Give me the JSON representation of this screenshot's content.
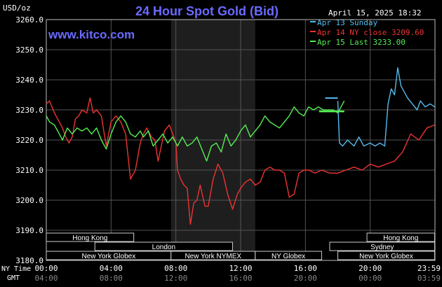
{
  "header": {
    "title": "24 Hour Spot Gold (Bid)",
    "unit": "USD/oz",
    "timestamp": "April 15, 2025 18:32",
    "website": "www.kitco.com"
  },
  "chart_data": {
    "type": "line",
    "title": "24 Hour Spot Gold (Bid)",
    "ylabel": "USD/oz",
    "x_unit": "hours (NY Time)",
    "xlim": [
      0,
      24
    ],
    "ylim": [
      3180,
      3260
    ],
    "y_ticks": [
      "3260.0",
      "3250.0",
      "3240.0",
      "3230.0",
      "3220.0",
      "3210.0",
      "3200.0",
      "3190.0",
      "3180.0"
    ],
    "x_ticks_ny": [
      "00:00",
      "04:00",
      "08:00",
      "12:00",
      "16:00",
      "20:00",
      "23:59"
    ],
    "x_ticks_gmt": [
      "04:00",
      "08:00",
      "12:00",
      "16:00",
      "20:00",
      "00:00",
      "03:59"
    ],
    "row_label_ny": "NY Time",
    "row_label_gmt": "GMT",
    "grid": true,
    "legend_position": "top-right",
    "shaded_session_hours": [
      7.7,
      12.9
    ],
    "series": [
      {
        "name": "Apr 13 Sunday",
        "color": "#55bbee",
        "x": [
          18.0,
          18.1,
          18.3,
          18.6,
          19.0,
          19.3,
          19.6,
          20.0,
          20.3,
          20.6,
          20.9,
          21.1,
          21.3,
          21.5,
          21.7,
          21.9,
          22.1,
          22.3,
          22.6,
          22.9,
          23.1,
          23.4,
          23.7,
          23.98
        ],
        "y": [
          3233,
          3219,
          3218,
          3220,
          3218,
          3221,
          3218,
          3219,
          3218,
          3219,
          3218,
          3232,
          3237,
          3235,
          3244,
          3238,
          3236,
          3234,
          3232,
          3230,
          3233,
          3231,
          3232,
          3231
        ]
      },
      {
        "name": "Apr 14 NY close 3209.60",
        "color": "#ee3333",
        "x": [
          0.0,
          0.2,
          0.5,
          0.8,
          1.0,
          1.2,
          1.4,
          1.6,
          1.8,
          2.0,
          2.2,
          2.5,
          2.7,
          2.9,
          3.1,
          3.4,
          3.7,
          4.0,
          4.3,
          4.6,
          4.9,
          5.2,
          5.5,
          5.8,
          6.0,
          6.2,
          6.5,
          6.7,
          6.9,
          7.1,
          7.3,
          7.6,
          7.8,
          8.0,
          8.1,
          8.3,
          8.5,
          8.7,
          8.9,
          9.1,
          9.3,
          9.5,
          9.8,
          10.0,
          10.3,
          10.6,
          10.9,
          11.2,
          11.5,
          11.8,
          12.0,
          12.3,
          12.6,
          12.9,
          13.2,
          13.5,
          13.8,
          14.1,
          14.4,
          14.7,
          15.0,
          15.3,
          15.6,
          15.9,
          16.2,
          16.6,
          17.0,
          17.5,
          18.0,
          18.5,
          19.0,
          19.5,
          20.0,
          20.5,
          21.0,
          21.5,
          22.0,
          22.5,
          23.0,
          23.5,
          23.98
        ],
        "y": [
          3232,
          3233,
          3229,
          3226,
          3224,
          3221,
          3219,
          3221,
          3227,
          3228,
          3230,
          3229,
          3234,
          3229,
          3230,
          3228,
          3218,
          3226,
          3228,
          3226,
          3222,
          3207,
          3210,
          3219,
          3222,
          3224,
          3221,
          3220,
          3213,
          3218,
          3223,
          3225,
          3222,
          3219,
          3210,
          3207,
          3205,
          3204,
          3192,
          3199,
          3200,
          3205,
          3198,
          3198,
          3207,
          3212,
          3209,
          3202,
          3197,
          3202,
          3204,
          3206,
          3207,
          3205,
          3206,
          3210,
          3211,
          3210,
          3210,
          3209,
          3201,
          3202,
          3209,
          3210,
          3210,
          3209,
          3210,
          3209,
          3209,
          3210,
          3211,
          3210,
          3212,
          3211,
          3212,
          3213,
          3216,
          3222,
          3220,
          3224,
          3225
        ]
      },
      {
        "name": "Apr 15 Last 3233.00",
        "color": "#55ee55",
        "x": [
          0.0,
          0.2,
          0.5,
          0.8,
          1.0,
          1.3,
          1.6,
          1.9,
          2.2,
          2.5,
          2.8,
          3.1,
          3.4,
          3.7,
          4.0,
          4.3,
          4.6,
          4.9,
          5.2,
          5.5,
          5.8,
          6.0,
          6.3,
          6.6,
          6.9,
          7.2,
          7.5,
          7.8,
          8.1,
          8.4,
          8.7,
          9.0,
          9.3,
          9.6,
          9.9,
          10.2,
          10.5,
          10.8,
          11.1,
          11.4,
          11.7,
          12.0,
          12.3,
          12.6,
          12.9,
          13.2,
          13.5,
          13.8,
          14.1,
          14.4,
          14.7,
          15.0,
          15.3,
          15.6,
          15.9,
          16.2,
          16.5,
          16.8,
          17.1,
          17.4,
          17.7,
          18.0,
          18.2,
          18.4
        ],
        "y": [
          3228,
          3226,
          3225,
          3222,
          3220,
          3224,
          3222,
          3224,
          3223,
          3224,
          3222,
          3224,
          3220,
          3217,
          3222,
          3226,
          3228,
          3226,
          3222,
          3221,
          3223,
          3221,
          3223,
          3218,
          3220,
          3222,
          3219,
          3221,
          3218,
          3221,
          3218,
          3219,
          3221,
          3217,
          3213,
          3218,
          3219,
          3216,
          3222,
          3218,
          3220,
          3223,
          3225,
          3221,
          3223,
          3225,
          3228,
          3226,
          3225,
          3224,
          3226,
          3228,
          3231,
          3229,
          3228,
          3231,
          3230,
          3231,
          3230,
          3230,
          3230,
          3229,
          3231,
          3233
        ]
      }
    ],
    "market_sessions": [
      {
        "name": "Hong Kong",
        "start": 0.0,
        "end": 5.4
      },
      {
        "name": "Hong Kong",
        "start": 19.8,
        "end": 23.98
      },
      {
        "name": "London",
        "start": 3.0,
        "end": 11.5
      },
      {
        "name": "Sydney",
        "start": 17.5,
        "end": 23.98
      },
      {
        "name": "New York Globex",
        "start": 0.0,
        "end": 7.7
      },
      {
        "name": "New York NYMEX",
        "start": 7.7,
        "end": 12.9
      },
      {
        "name": "NY Globex",
        "start": 12.9,
        "end": 17.0
      },
      {
        "name": "New York Globex",
        "start": 18.0,
        "end": 23.98
      }
    ]
  }
}
